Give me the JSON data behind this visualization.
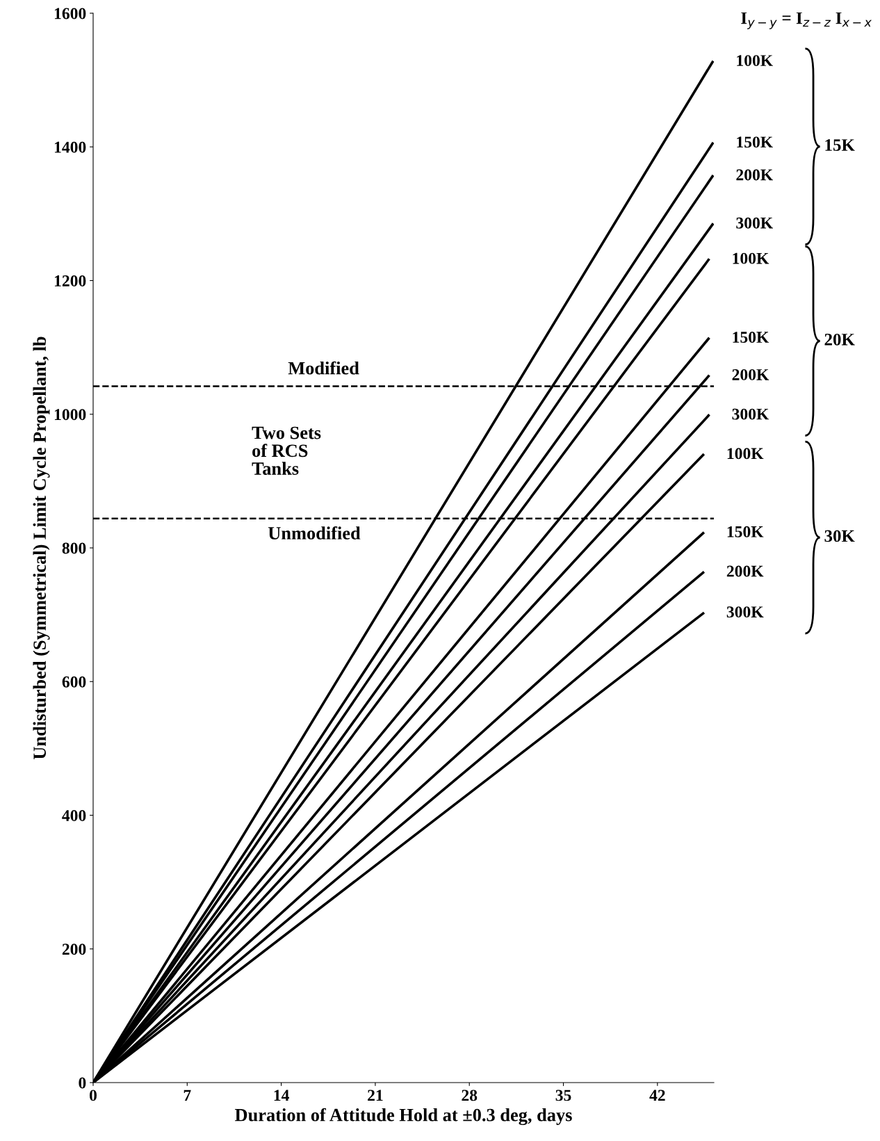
{
  "chart_data": {
    "type": "line",
    "xlabel": "Duration of Attitude Hold at ±0.3 deg, days",
    "ylabel": "Undisturbed (Symmetrical) Limit Cycle Propellant, lb",
    "xlim": [
      0,
      46.2
    ],
    "ylim": [
      0,
      1600
    ],
    "xticks": [
      0,
      7,
      14,
      21,
      28,
      35,
      42
    ],
    "yticks": [
      0,
      200,
      400,
      600,
      800,
      1000,
      1200,
      1400,
      1600
    ],
    "grid": false,
    "marker": "none",
    "line_style": "solid",
    "series": [
      {
        "name": "100K",
        "color": "#000000",
        "x": [
          0,
          46.1
        ],
        "values": [
          0,
          1527
        ]
      },
      {
        "name": "150K",
        "color": "#000000",
        "x": [
          0,
          46.1
        ],
        "values": [
          0,
          1405
        ]
      },
      {
        "name": "200K",
        "color": "#000000",
        "x": [
          0,
          46.1
        ],
        "values": [
          0,
          1356
        ]
      },
      {
        "name": "300K",
        "color": "#000000",
        "x": [
          0,
          46.1
        ],
        "values": [
          0,
          1284
        ]
      },
      {
        "name": "100K",
        "color": "#000000",
        "x": [
          0,
          45.8
        ],
        "values": [
          0,
          1231
        ]
      },
      {
        "name": "150K",
        "color": "#000000",
        "x": [
          0,
          45.8
        ],
        "values": [
          0,
          1113
        ]
      },
      {
        "name": "200K",
        "color": "#000000",
        "x": [
          0,
          45.8
        ],
        "values": [
          0,
          1057
        ]
      },
      {
        "name": "300K",
        "color": "#000000",
        "x": [
          0,
          45.8
        ],
        "values": [
          0,
          998
        ]
      },
      {
        "name": "100K",
        "color": "#000000",
        "x": [
          0,
          45.4
        ],
        "values": [
          0,
          939
        ]
      },
      {
        "name": "150K",
        "color": "#000000",
        "x": [
          0,
          45.4
        ],
        "values": [
          0,
          822
        ]
      },
      {
        "name": "200K",
        "color": "#000000",
        "x": [
          0,
          45.4
        ],
        "values": [
          0,
          763
        ]
      },
      {
        "name": "300K",
        "color": "#000000",
        "x": [
          0,
          45.4
        ],
        "values": [
          0,
          702
        ]
      }
    ],
    "ref_lines": [
      {
        "axis": "y",
        "value": 1042,
        "label": "Modified",
        "line_style": "dashed",
        "color": "#000000"
      },
      {
        "axis": "y",
        "value": 844,
        "label": "Unmodified",
        "line_style": "dashed",
        "color": "#000000"
      }
    ],
    "annotations": [
      "I$_{y−y}$ = I$_{z−z}$ I$_{x−x}$",
      "15K",
      "20K",
      "30K",
      "Two Sets\nof RCS\nTanks"
    ]
  }
}
